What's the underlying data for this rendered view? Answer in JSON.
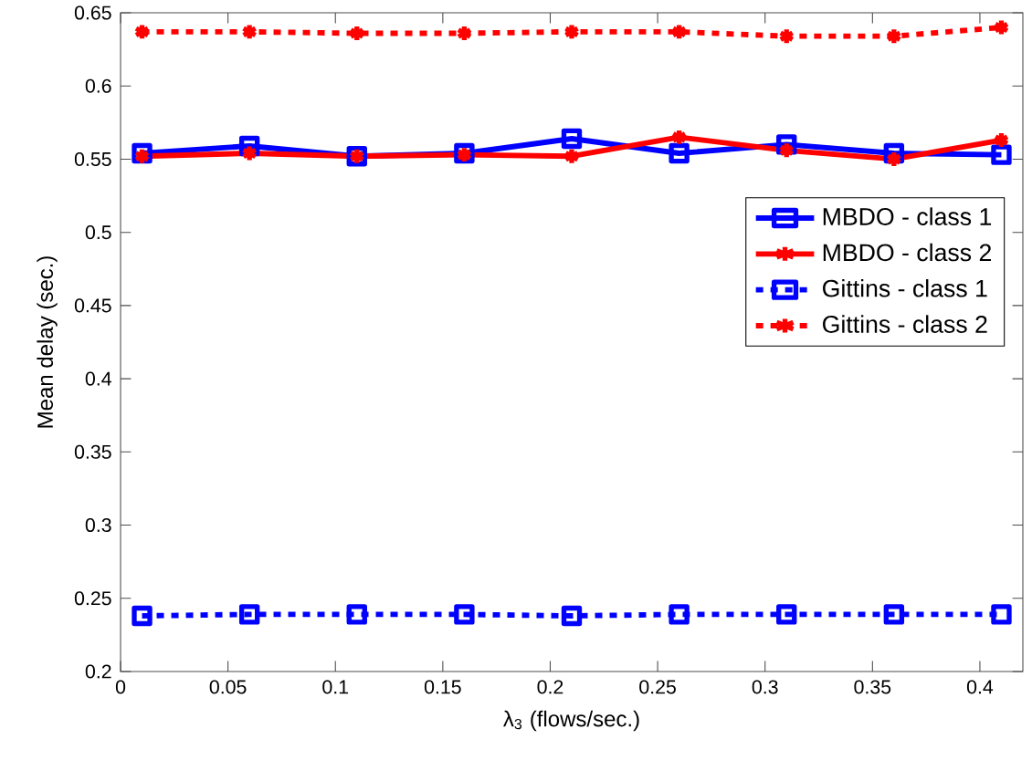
{
  "chart_data": {
    "type": "line",
    "xlabel": "λ$_{3}$ (flows/sec.)",
    "ylabel": "Mean delay (sec.)",
    "x": [
      0.01,
      0.06,
      0.11,
      0.16,
      0.21,
      0.26,
      0.31,
      0.36,
      0.41
    ],
    "series": [
      {
        "name": "MBDO - class 1",
        "color": "#0000ff",
        "marker": "square",
        "line_style": "solid",
        "values": [
          0.554,
          0.559,
          0.552,
          0.554,
          0.564,
          0.554,
          0.56,
          0.554,
          0.553
        ]
      },
      {
        "name": "MBDO - class 2",
        "color": "#ff0000",
        "marker": "cross",
        "line_style": "solid",
        "values": [
          0.552,
          0.554,
          0.552,
          0.553,
          0.552,
          0.565,
          0.556,
          0.55,
          0.563
        ]
      },
      {
        "name": "Gittins - class 1",
        "color": "#0000ff",
        "marker": "square",
        "line_style": "dotted",
        "values": [
          0.238,
          0.239,
          0.239,
          0.239,
          0.238,
          0.239,
          0.239,
          0.239,
          0.239
        ]
      },
      {
        "name": "Gittins - class 2",
        "color": "#ff0000",
        "marker": "cross",
        "line_style": "dotted",
        "values": [
          0.637,
          0.637,
          0.636,
          0.636,
          0.637,
          0.637,
          0.634,
          0.634,
          0.64
        ]
      }
    ],
    "xlim": [
      0,
      0.42
    ],
    "ylim": [
      0.2,
      0.65
    ],
    "xticks": [
      0,
      0.05,
      0.1,
      0.15,
      0.2,
      0.25,
      0.3,
      0.35,
      0.4
    ],
    "yticks": [
      0.2,
      0.25,
      0.3,
      0.35,
      0.4,
      0.45,
      0.5,
      0.55,
      0.6,
      0.65
    ],
    "grid": false,
    "legend": "right"
  }
}
